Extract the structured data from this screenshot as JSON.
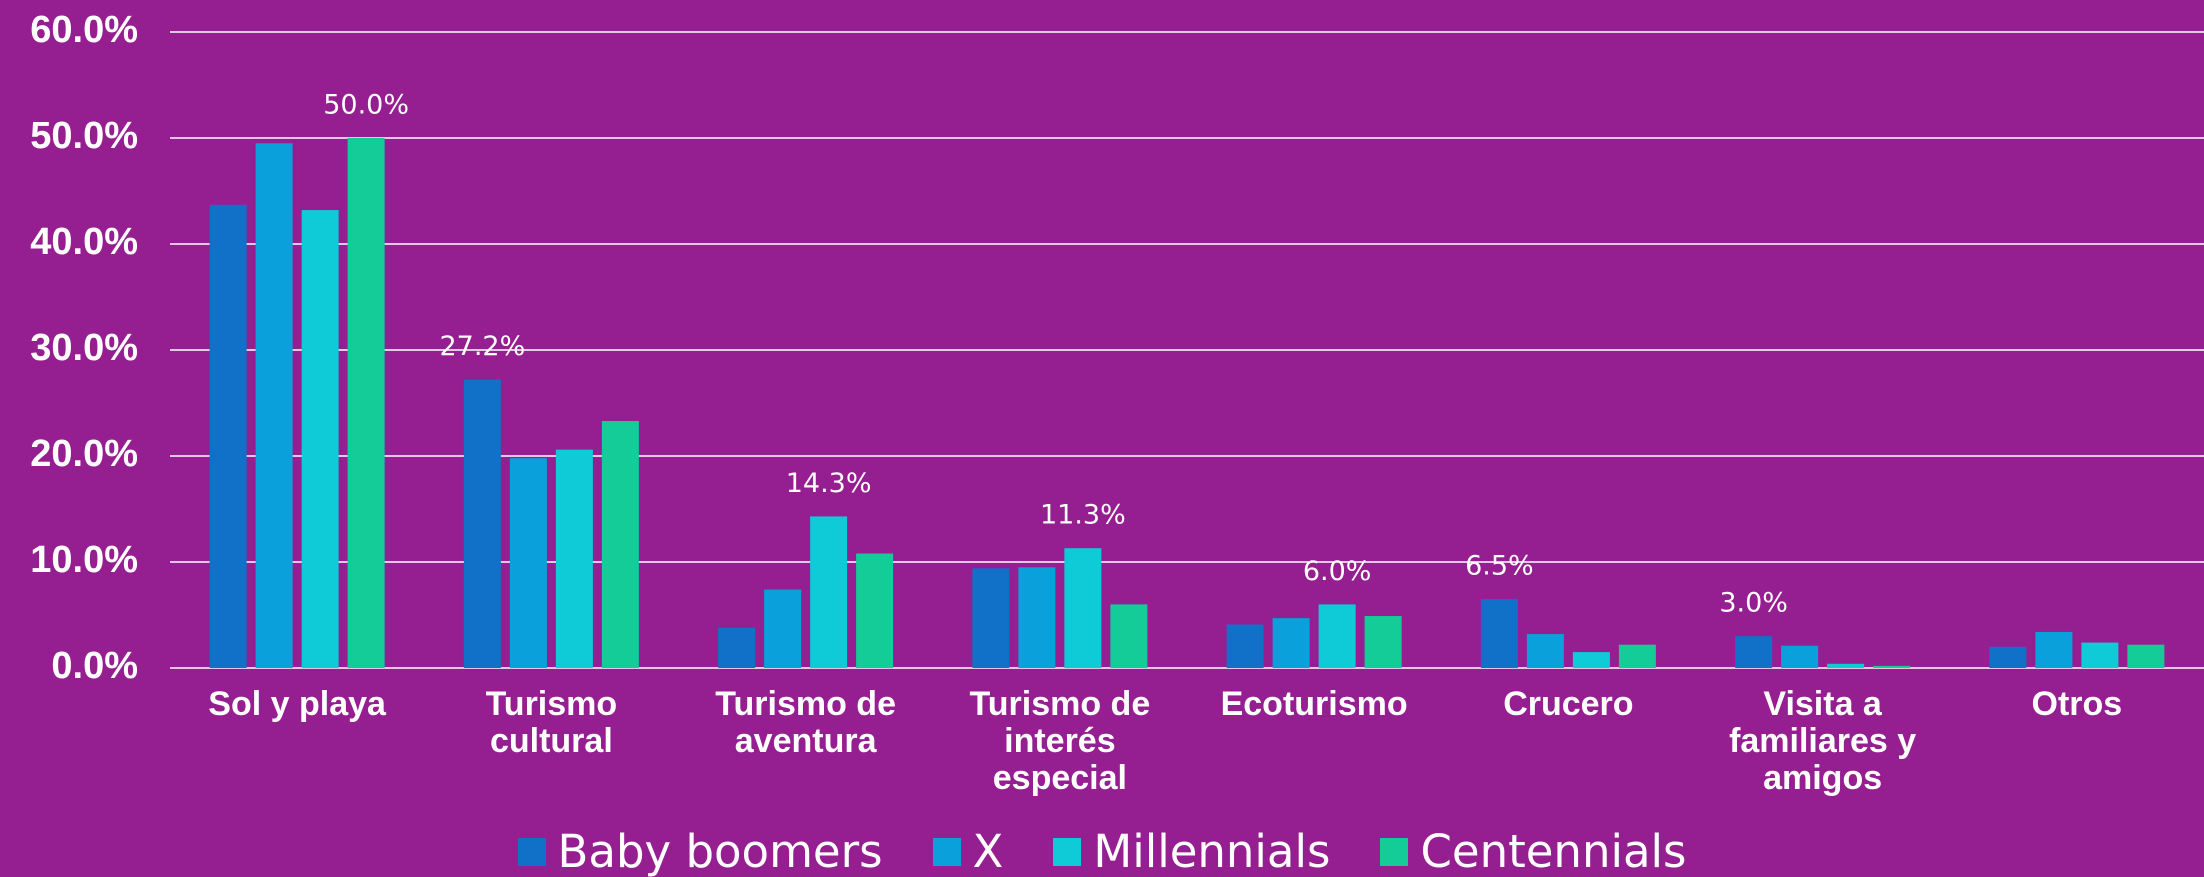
{
  "chart_data": {
    "type": "bar",
    "categories": [
      "Sol y playa",
      "Turismo cultural",
      "Turismo de aventura",
      "Turismo de interés especial",
      "Ecoturismo",
      "Crucero",
      "Visita a familiares y amigos",
      "Otros"
    ],
    "series": [
      {
        "name": "Baby boomers",
        "color": "#1170c8",
        "values": [
          43.7,
          27.2,
          3.8,
          9.4,
          4.1,
          6.5,
          3.0,
          2.0
        ],
        "value_labels": [
          null,
          "27.2%",
          null,
          null,
          null,
          "6.5%",
          "3.0%",
          null
        ]
      },
      {
        "name": "X",
        "color": "#0aa0dc",
        "values": [
          49.5,
          19.8,
          7.4,
          9.5,
          4.7,
          3.2,
          2.1,
          3.4
        ]
      },
      {
        "name": "Millennials",
        "color": "#0fcbd8",
        "values": [
          43.2,
          20.6,
          14.3,
          11.3,
          6.0,
          1.5,
          0.4,
          2.4
        ],
        "value_labels": [
          null,
          null,
          "14.3%",
          "11.3%",
          "6.0%",
          null,
          null,
          null
        ]
      },
      {
        "name": "Centennials",
        "color": "#13cc98",
        "values": [
          50.0,
          23.3,
          10.8,
          6.0,
          4.9,
          2.2,
          0.2,
          2.2
        ],
        "value_labels": [
          "50.0%",
          null,
          null,
          null,
          null,
          null,
          null,
          null
        ]
      }
    ],
    "ylim": [
      0,
      60
    ],
    "yticks": [
      {
        "value": 0,
        "label": "0.0%"
      },
      {
        "value": 10,
        "label": "10.0%"
      },
      {
        "value": 20,
        "label": "20.0%"
      },
      {
        "value": 30,
        "label": "30.0%"
      },
      {
        "value": 40,
        "label": "40.0%"
      },
      {
        "value": 50,
        "label": "50.0%"
      },
      {
        "value": 60,
        "label": "60.0%"
      }
    ],
    "grid": true,
    "legend": "bottom"
  }
}
